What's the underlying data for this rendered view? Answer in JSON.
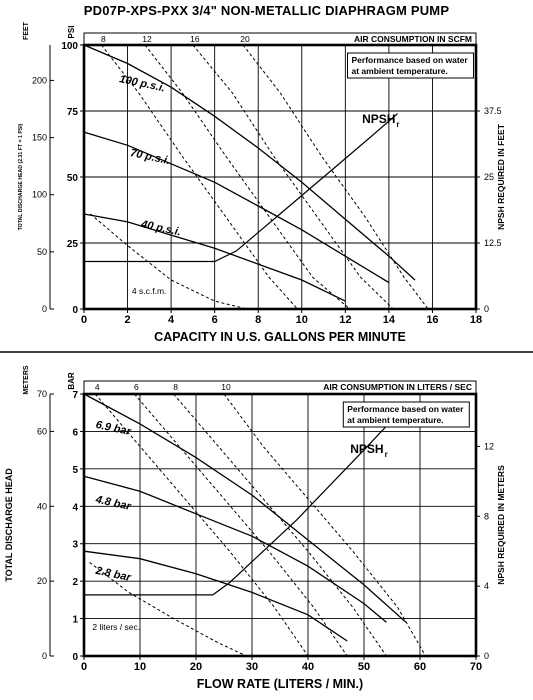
{
  "title": "PD07P-XPS-PXX  3/4\" NON-METALLIC DIAPHRAGM PUMP",
  "chart_data": [
    {
      "type": "line",
      "panel": "imperial",
      "xlabel": "CAPACITY IN U.S. GALLONS PER MINUTE",
      "xlim": [
        0,
        18
      ],
      "x_ticks": [
        "0",
        "2",
        "4",
        "6",
        "8",
        "10",
        "12",
        "14",
        "16",
        "18"
      ],
      "left_unit_feet": "FEET",
      "left_unit_psi": "PSI",
      "left_axis_label": "TOTAL DISCHARGE HEAD (2.31 FT = 1 PSI)",
      "feet_ticks": [
        "0",
        "50",
        "100",
        "150",
        "200"
      ],
      "psi_ticks": [
        "0",
        "25",
        "50",
        "75",
        "100"
      ],
      "ylim_psi": [
        0,
        100
      ],
      "right_axis_label": "NPSH REQUIRED IN FEET",
      "right_ticks": [
        "0",
        "12.5",
        "25",
        "37.5"
      ],
      "right_ylim": [
        0,
        50
      ],
      "air_label": "AIR CONSUMPTION IN SCFM",
      "air_ticks": [
        "8",
        "12",
        "16",
        "20"
      ],
      "note_line1": "Performance based on water",
      "note_line2": "at ambient temperature.",
      "npsh_label": "NPSH",
      "npsh_sub": "r",
      "air_curve_label": "4 s.c.f.m.",
      "series": [
        {
          "name": "100 p.s.i.",
          "label_at": [
            1.6,
            86
          ],
          "x": [
            0,
            2,
            4,
            6,
            8,
            10,
            12,
            14,
            15.2
          ],
          "y": [
            100,
            93,
            84,
            73,
            61,
            48,
            34,
            20,
            11
          ]
        },
        {
          "name": "70 p.s.i.",
          "label_at": [
            2.1,
            58
          ],
          "x": [
            0,
            2,
            4,
            6,
            8,
            10,
            12,
            14
          ],
          "y": [
            67,
            62,
            55,
            48,
            39,
            30,
            20,
            10
          ]
        },
        {
          "name": "40 p.s.i.",
          "label_at": [
            2.6,
            31
          ],
          "x": [
            0,
            2,
            4,
            6,
            8,
            10,
            12
          ],
          "y": [
            36,
            33,
            28,
            23,
            17,
            11,
            3
          ]
        }
      ],
      "air_curves": [
        {
          "name": "4 s.c.f.m.",
          "x": [
            0.3,
            2,
            4,
            6,
            7.5
          ],
          "y": [
            36,
            24,
            11,
            3,
            0
          ]
        },
        {
          "name": "8",
          "x": [
            0.8,
            2.5,
            4.5,
            6.5,
            8.5,
            9.8
          ],
          "y": [
            100,
            82,
            58,
            35,
            12,
            0
          ]
        },
        {
          "name": "12",
          "x": [
            2.8,
            4.5,
            6.5,
            8.5,
            10.5,
            12.2
          ],
          "y": [
            100,
            82,
            58,
            35,
            12,
            0
          ]
        },
        {
          "name": "16",
          "x": [
            5,
            6.8,
            8.7,
            10.7,
            12.7,
            14.2
          ],
          "y": [
            100,
            82,
            58,
            35,
            12,
            0
          ]
        },
        {
          "name": "20",
          "x": [
            7.3,
            9,
            10.9,
            12.9,
            14.7,
            15.8
          ],
          "y": [
            100,
            82,
            58,
            35,
            12,
            0
          ]
        }
      ],
      "npsh_curve": {
        "x": [
          0,
          6,
          7,
          9,
          11,
          13,
          14.4
        ],
        "y_right": [
          9,
          9,
          11,
          18,
          25,
          32,
          37
        ]
      }
    },
    {
      "type": "line",
      "panel": "metric",
      "xlabel": "FLOW RATE (LITERS / MIN.)",
      "xlim": [
        0,
        70
      ],
      "x_ticks": [
        "0",
        "10",
        "20",
        "30",
        "40",
        "50",
        "60",
        "70"
      ],
      "left_unit_meters": "METERS",
      "left_unit_bar": "BAR",
      "left_axis_label": "TOTAL DISCHARGE HEAD",
      "meter_ticks": [
        "0",
        "20",
        "40",
        "60",
        "70"
      ],
      "bar_ticks": [
        "0",
        "1",
        "2",
        "3",
        "4",
        "5",
        "6",
        "7"
      ],
      "ylim_bar": [
        0,
        7
      ],
      "right_axis_label": "NPSH REQUIRED IN METERS",
      "right_ticks": [
        "0",
        "4",
        "8",
        "12"
      ],
      "right_ylim": [
        0,
        15
      ],
      "air_label": "AIR CONSUMPTION IN LITERS / SEC",
      "air_ticks": [
        "4",
        "6",
        "8",
        "10"
      ],
      "note_line1": "Performance based on water",
      "note_line2": "at ambient temperature.",
      "npsh_label": "NPSH",
      "npsh_sub": "r",
      "air_curve_label": "2 liters / sec.",
      "series": [
        {
          "name": "6.9 bar",
          "label_at": [
            2,
            6.1
          ],
          "x": [
            0,
            10,
            20,
            30,
            40,
            50,
            57.5
          ],
          "y": [
            7,
            6.2,
            5.3,
            4.3,
            3.1,
            1.9,
            0.9
          ]
        },
        {
          "name": "4.8 bar",
          "label_at": [
            2,
            4.1
          ],
          "x": [
            0,
            10,
            20,
            30,
            40,
            50,
            54
          ],
          "y": [
            4.8,
            4.4,
            3.8,
            3.2,
            2.4,
            1.4,
            0.9
          ]
        },
        {
          "name": "2.8 bar",
          "label_at": [
            2,
            2.2
          ],
          "x": [
            0,
            10,
            20,
            30,
            40,
            47
          ],
          "y": [
            2.8,
            2.6,
            2.2,
            1.7,
            1.1,
            0.4
          ]
        }
      ],
      "air_curves": [
        {
          "name": "2 liters / sec.",
          "x": [
            1,
            8,
            16,
            24,
            29
          ],
          "y": [
            2.5,
            1.7,
            1.0,
            0.35,
            0
          ]
        },
        {
          "name": "4",
          "x": [
            2,
            10,
            18,
            26,
            34,
            40
          ],
          "y": [
            7,
            5.6,
            4.2,
            2.8,
            1.3,
            0
          ]
        },
        {
          "name": "6",
          "x": [
            9,
            17,
            25,
            33,
            41,
            47
          ],
          "y": [
            7,
            5.6,
            4.2,
            2.8,
            1.3,
            0
          ]
        },
        {
          "name": "8",
          "x": [
            16,
            24,
            32,
            40,
            48,
            54
          ],
          "y": [
            7,
            5.6,
            4.2,
            2.8,
            1.3,
            0
          ]
        },
        {
          "name": "10",
          "x": [
            25,
            32,
            40,
            48,
            56,
            61
          ],
          "y": [
            7,
            5.6,
            4.2,
            2.8,
            1.3,
            0
          ]
        }
      ],
      "npsh_curve": {
        "x": [
          0,
          23,
          26,
          32,
          38,
          44,
          50,
          55
        ],
        "y_right": [
          3.5,
          3.5,
          4.2,
          6,
          7.8,
          9.8,
          11.8,
          13.5
        ]
      }
    }
  ]
}
